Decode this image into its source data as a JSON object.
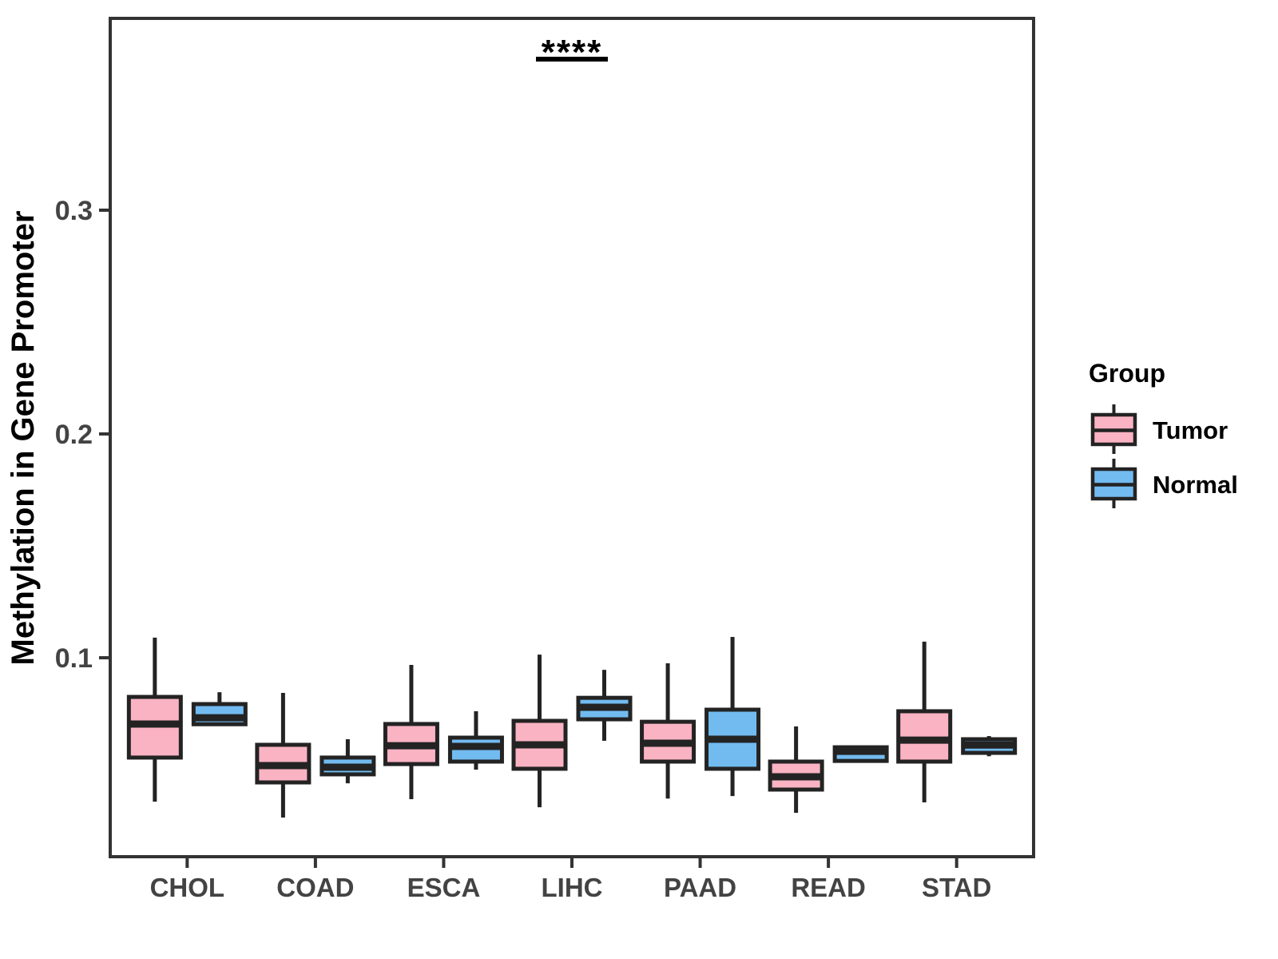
{
  "chart_data": {
    "type": "boxplot",
    "title": "",
    "xlabel": "",
    "ylabel": "Methylation in Gene Promoter",
    "categories": [
      "CHOL",
      "COAD",
      "ESCA",
      "LIHC",
      "PAAD",
      "READ",
      "STAD"
    ],
    "y_ticks": [
      0.1,
      0.2,
      0.3
    ],
    "ylim": [
      0.0111,
      0.3857
    ],
    "grid": "off",
    "colors": {
      "tumor_fill": "#FAB3C3",
      "normal_fill": "#72BBF0",
      "box_stroke": "#232323",
      "axis_stroke": "#333333",
      "axis_text": "#434343"
    },
    "legend": {
      "title": "Group",
      "position": "right",
      "items": [
        {
          "label": "Tumor",
          "color": "#FAB3C3"
        },
        {
          "label": "Normal",
          "color": "#72BBF0"
        }
      ]
    },
    "annotation": {
      "text": "****",
      "group": "LIHC",
      "bar_y": 0.3675
    },
    "series": [
      {
        "name": "Tumor",
        "fill": "#FAB3C3",
        "boxes": [
          {
            "category": "CHOL",
            "lo": 0.0357,
            "q1": 0.0554,
            "med": 0.0704,
            "q3": 0.0825,
            "hi": 0.109
          },
          {
            "category": "COAD",
            "lo": 0.0286,
            "q1": 0.0443,
            "med": 0.0518,
            "q3": 0.0611,
            "hi": 0.0843
          },
          {
            "category": "ESCA",
            "lo": 0.0368,
            "q1": 0.0525,
            "med": 0.0607,
            "q3": 0.0704,
            "hi": 0.0968
          },
          {
            "category": "LIHC",
            "lo": 0.0332,
            "q1": 0.0504,
            "med": 0.0611,
            "q3": 0.0718,
            "hi": 0.1014
          },
          {
            "category": "PAAD",
            "lo": 0.0371,
            "q1": 0.0536,
            "med": 0.0618,
            "q3": 0.0714,
            "hi": 0.0975
          },
          {
            "category": "READ",
            "lo": 0.0307,
            "q1": 0.0411,
            "med": 0.0468,
            "q3": 0.0536,
            "hi": 0.0693
          },
          {
            "category": "STAD",
            "lo": 0.0354,
            "q1": 0.0536,
            "med": 0.0632,
            "q3": 0.0761,
            "hi": 0.1072
          }
        ]
      },
      {
        "name": "Normal",
        "fill": "#72BBF0",
        "boxes": [
          {
            "category": "CHOL",
            "lo": 0.0703,
            "q1": 0.0703,
            "med": 0.0732,
            "q3": 0.0793,
            "hi": 0.0846
          },
          {
            "category": "COAD",
            "lo": 0.0439,
            "q1": 0.0479,
            "med": 0.0511,
            "q3": 0.0554,
            "hi": 0.0636
          },
          {
            "category": "ESCA",
            "lo": 0.05,
            "q1": 0.0536,
            "med": 0.0604,
            "q3": 0.0643,
            "hi": 0.0761
          },
          {
            "category": "LIHC",
            "lo": 0.0629,
            "q1": 0.0725,
            "med": 0.0779,
            "q3": 0.0821,
            "hi": 0.0946
          },
          {
            "category": "PAAD",
            "lo": 0.0382,
            "q1": 0.0504,
            "med": 0.0636,
            "q3": 0.0768,
            "hi": 0.1093
          },
          {
            "category": "READ",
            "lo": 0.0532,
            "q1": 0.0539,
            "med": 0.0582,
            "q3": 0.06,
            "hi": 0.0607
          },
          {
            "category": "STAD",
            "lo": 0.056,
            "q1": 0.0575,
            "med": 0.061,
            "q3": 0.0636,
            "hi": 0.065
          }
        ]
      }
    ]
  }
}
